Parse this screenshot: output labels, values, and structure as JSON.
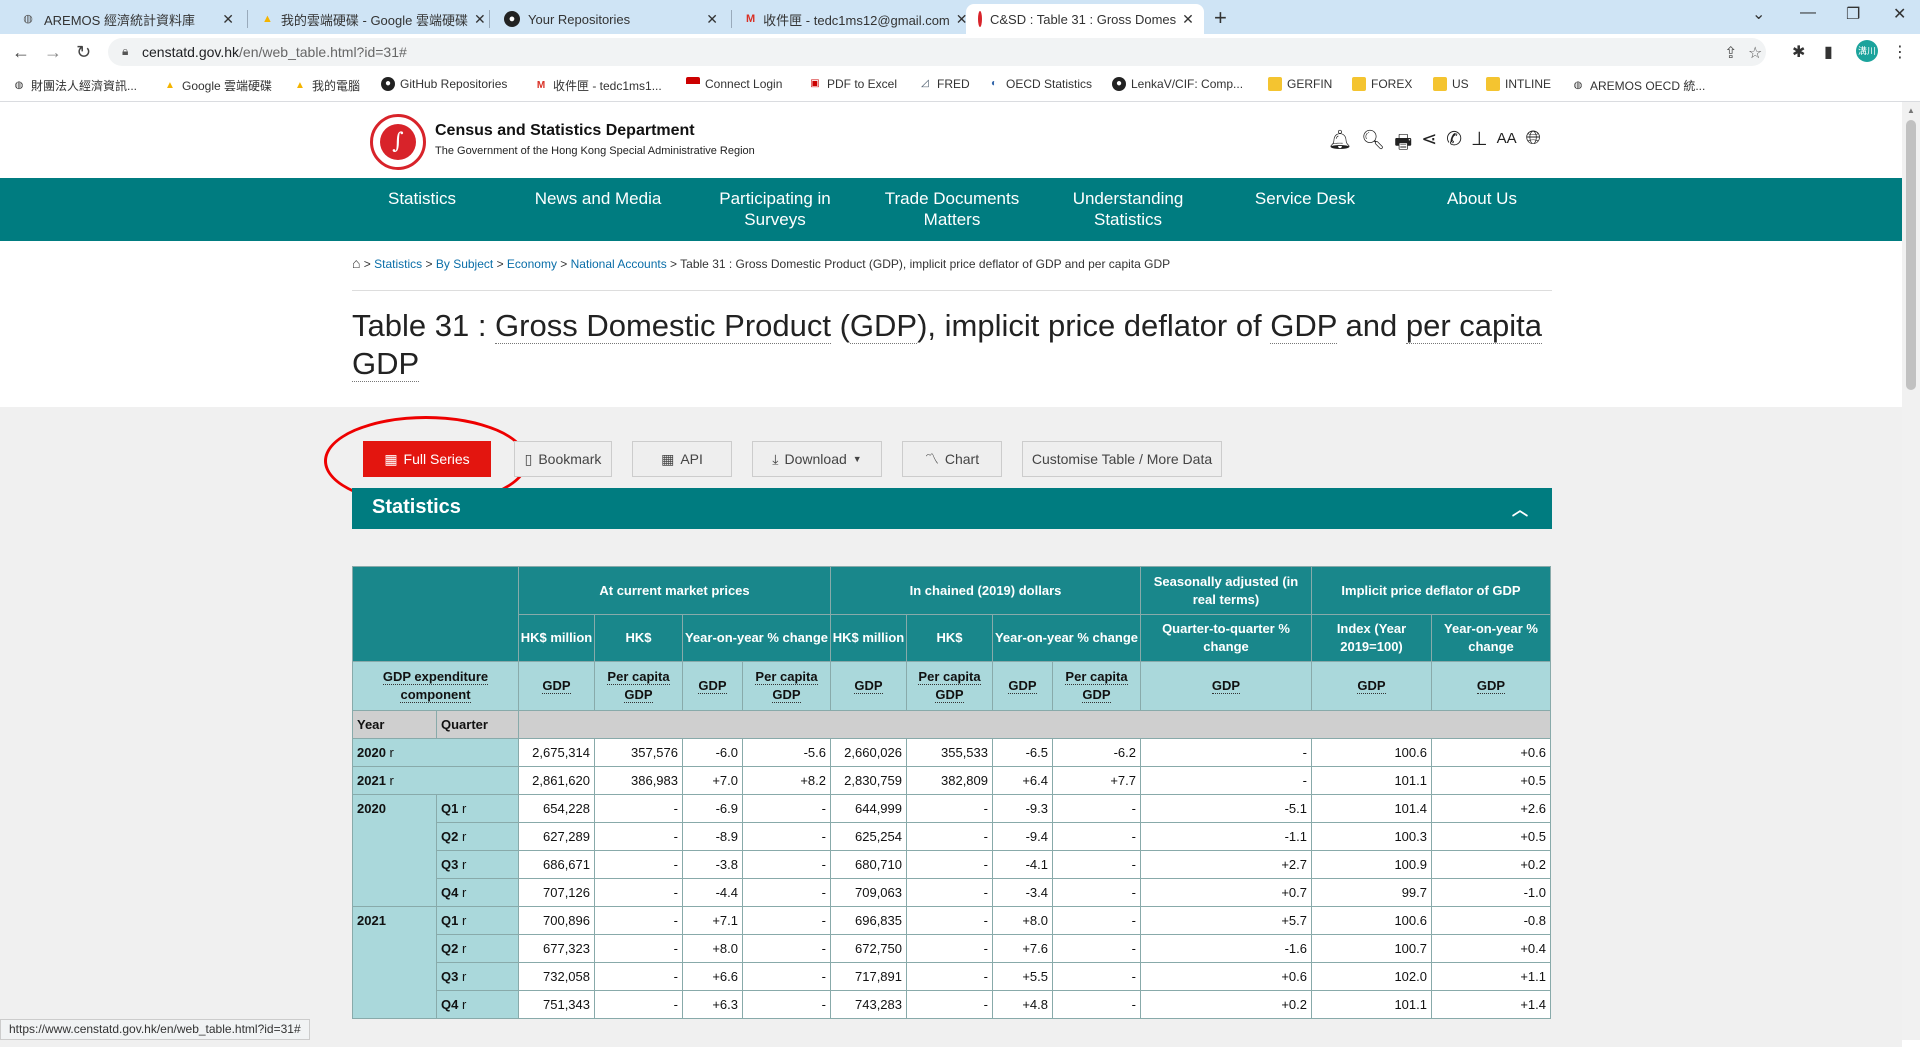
{
  "browser": {
    "tabs": [
      {
        "title": "AREMOS 經濟統計資料庫",
        "icon": "globe"
      },
      {
        "title": "我的雲端硬碟 - Google 雲端硬碟",
        "icon": "drive"
      },
      {
        "title": "Your Repositories",
        "icon": "github"
      },
      {
        "title": "收件匣 - tedc1ms12@gmail.com",
        "icon": "gmail"
      },
      {
        "title": "C&SD : Table 31 : Gross Domes",
        "icon": "csd"
      }
    ],
    "url_host": "censtatd.gov.hk",
    "url_path": "/en/web_table.html?id=31#",
    "profile_label": "溝川",
    "bookmarks": [
      "財團法人經濟資訊...",
      "Google 雲端硬碟",
      "我的電腦",
      "GitHub Repositories",
      "收件匣 - tedc1ms1...",
      "Connect Login",
      "PDF to Excel",
      "FRED",
      "OECD Statistics",
      "LenkaV/CIF: Comp...",
      "GERFIN",
      "FOREX",
      "US",
      "INTLINE",
      "AREMOS OECD 統..."
    ],
    "status_url": "https://www.censtatd.gov.hk/en/web_table.html?id=31#"
  },
  "header": {
    "dept_name": "Census and Statistics Department",
    "dept_sub": "The Government of the Hong Kong Special Administrative Region",
    "icon_text_size": "AA"
  },
  "nav": [
    "Statistics",
    "News and Media",
    "Participating in Surveys",
    "Trade Documents Matters",
    "Understanding Statistics",
    "Service Desk",
    "About Us"
  ],
  "breadcrumb": {
    "items": [
      "Statistics",
      "By Subject",
      "Economy",
      "National Accounts"
    ],
    "current": "Table 31 : Gross Domestic Product (GDP), implicit price deflator of GDP and per capita GDP"
  },
  "title": {
    "part1": "Table 31 : ",
    "gdp_long": "Gross Domestic Product",
    "part2": " (",
    "gdp_abbr": "GDP",
    "part3": "), implicit price deflator of ",
    "gdp_abbr2": "GDP",
    "part4": " and ",
    "per_capita": "per capita GDP"
  },
  "buttons": {
    "full_series": "Full Series",
    "bookmark": "Bookmark",
    "api": "API",
    "download": "Download",
    "chart": "Chart",
    "customise": "Customise Table / More Data"
  },
  "statistics_label": "Statistics",
  "table": {
    "groups": [
      "At current market prices",
      "In chained (2019) dollars",
      "Seasonally adjusted (in real terms)",
      "Implicit price deflator of GDP"
    ],
    "units": [
      "HK$ million",
      "HK$",
      "Year-on-year % change",
      "HK$ million",
      "HK$",
      "Year-on-year % change",
      "Quarter-to-quarter % change",
      "Index (Year 2019=100)",
      "Year-on-year % change"
    ],
    "component_label": "GDP expenditure component",
    "components": [
      "GDP",
      "Per capita GDP",
      "GDP",
      "Per capita GDP",
      "GDP",
      "Per capita GDP",
      "GDP",
      "Per capita GDP",
      "GDP",
      "GDP",
      "GDP"
    ],
    "year_label": "Year",
    "quarter_label": "Quarter",
    "revised_mark": "r",
    "annual": [
      {
        "year": "2020",
        "values": [
          "2,675,314",
          "357,576",
          "-6.0",
          "-5.6",
          "2,660,026",
          "355,533",
          "-6.5",
          "-6.2",
          "-",
          "100.6",
          "+0.6"
        ]
      },
      {
        "year": "2021",
        "values": [
          "2,861,620",
          "386,983",
          "+7.0",
          "+8.2",
          "2,830,759",
          "382,809",
          "+6.4",
          "+7.7",
          "-",
          "101.1",
          "+0.5"
        ]
      }
    ],
    "quarterly": [
      {
        "year": "2020",
        "rows": [
          {
            "q": "Q1",
            "values": [
              "654,228",
              "-",
              "-6.9",
              "-",
              "644,999",
              "-",
              "-9.3",
              "-",
              "-5.1",
              "101.4",
              "+2.6"
            ]
          },
          {
            "q": "Q2",
            "values": [
              "627,289",
              "-",
              "-8.9",
              "-",
              "625,254",
              "-",
              "-9.4",
              "-",
              "-1.1",
              "100.3",
              "+0.5"
            ]
          },
          {
            "q": "Q3",
            "values": [
              "686,671",
              "-",
              "-3.8",
              "-",
              "680,710",
              "-",
              "-4.1",
              "-",
              "+2.7",
              "100.9",
              "+0.2"
            ]
          },
          {
            "q": "Q4",
            "values": [
              "707,126",
              "-",
              "-4.4",
              "-",
              "709,063",
              "-",
              "-3.4",
              "-",
              "+0.7",
              "99.7",
              "-1.0"
            ]
          }
        ]
      },
      {
        "year": "2021",
        "rows": [
          {
            "q": "Q1",
            "values": [
              "700,896",
              "-",
              "+7.1",
              "-",
              "696,835",
              "-",
              "+8.0",
              "-",
              "+5.7",
              "100.6",
              "-0.8"
            ]
          },
          {
            "q": "Q2",
            "values": [
              "677,323",
              "-",
              "+8.0",
              "-",
              "672,750",
              "-",
              "+7.6",
              "-",
              "-1.6",
              "100.7",
              "+0.4"
            ]
          },
          {
            "q": "Q3",
            "values": [
              "732,058",
              "-",
              "+6.6",
              "-",
              "717,891",
              "-",
              "+5.5",
              "-",
              "+0.6",
              "102.0",
              "+1.1"
            ]
          },
          {
            "q": "Q4",
            "values": [
              "751,343",
              "-",
              "+6.3",
              "-",
              "743,283",
              "-",
              "+4.8",
              "-",
              "+0.2",
              "101.1",
              "+1.4"
            ]
          }
        ]
      }
    ]
  }
}
